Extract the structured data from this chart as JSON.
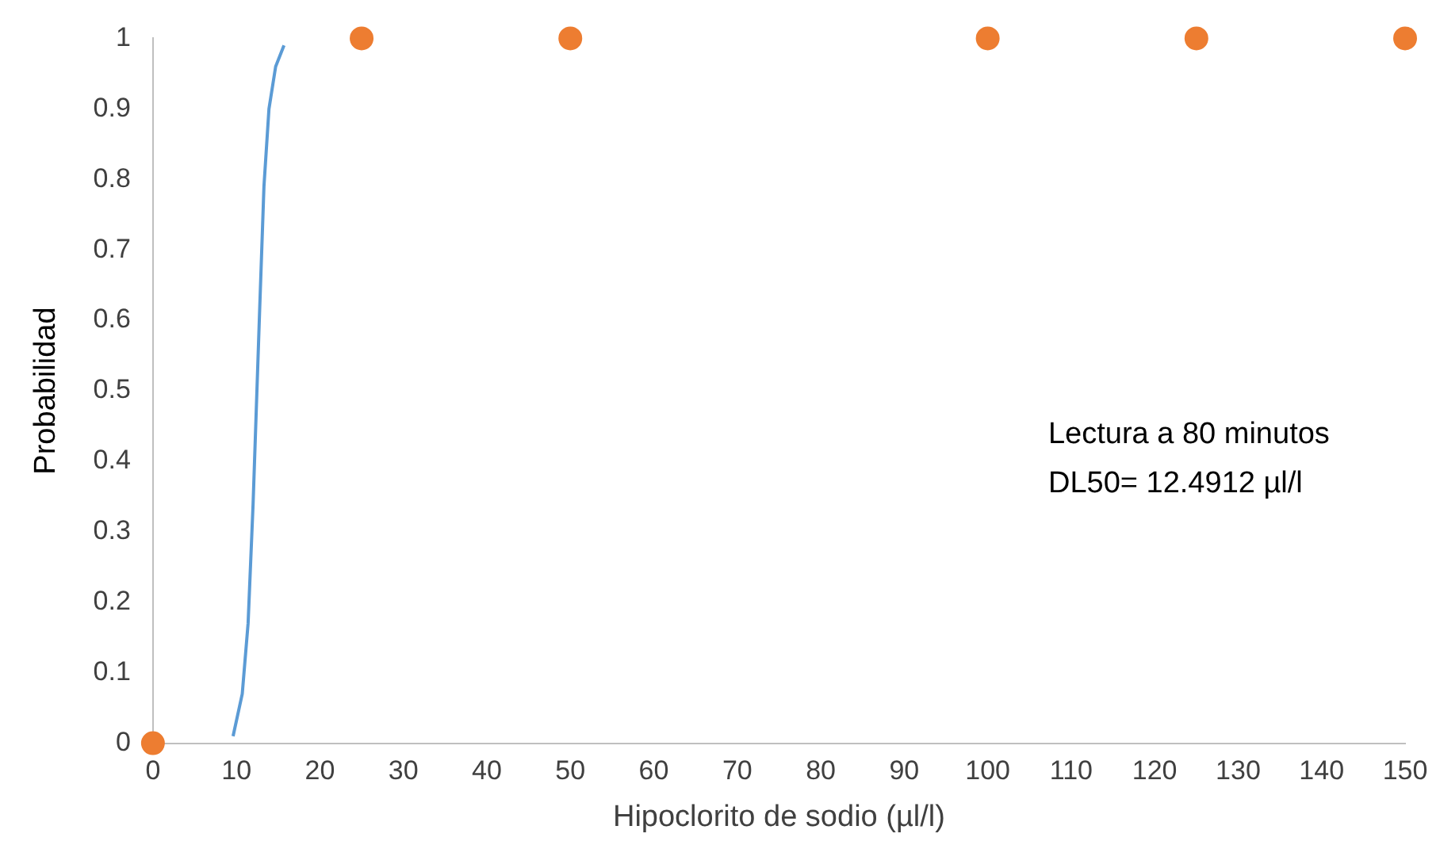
{
  "chart_data": {
    "type": "scatter",
    "xlabel": "Hipoclorito de sodio (µl/l)",
    "ylabel": "Probabilidad",
    "xlim": [
      0,
      150
    ],
    "xticks": [
      0,
      10,
      20,
      30,
      40,
      50,
      60,
      70,
      80,
      90,
      100,
      110,
      120,
      130,
      140,
      150
    ],
    "ylim": [
      0,
      1
    ],
    "yticks": [
      0,
      0.1,
      0.2,
      0.3,
      0.4,
      0.5,
      0.6,
      0.7,
      0.8,
      0.9,
      1
    ],
    "grid": false,
    "legend": false,
    "annotations": [
      "Lectura a 80 minutos",
      "DL50= 12.4912 µl/l"
    ],
    "series": [
      {
        "type": "line",
        "marker": "none",
        "color": "#5b9bd5",
        "x": [
          9.6,
          10.7,
          11.4,
          12.0,
          12.4,
          12.8,
          13.3,
          13.9,
          14.7,
          15.7
        ],
        "values": [
          0.01,
          0.07,
          0.17,
          0.34,
          0.48,
          0.62,
          0.79,
          0.9,
          0.96,
          0.99
        ]
      },
      {
        "marker": "circle",
        "color": "#ed7d31",
        "x": [
          0,
          25,
          50,
          100,
          125,
          150
        ],
        "values": [
          0,
          1,
          1,
          1,
          1,
          1
        ]
      }
    ]
  }
}
